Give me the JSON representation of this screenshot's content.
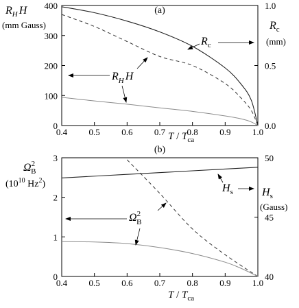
{
  "panels": [
    {
      "label": "(a)",
      "x": {
        "ticks": [
          "0.4",
          "0.5",
          "0.6",
          "0.7",
          "0.8",
          "0.9",
          "1.0"
        ]
      },
      "y_left": {
        "ticks": [
          "0",
          "100",
          "200",
          "300",
          "400"
        ],
        "unit": "(mm Gauss)"
      },
      "y_right": {
        "ticks": [
          "0.0",
          "0.5",
          "1.0"
        ],
        "unit": "(mm)"
      },
      "annotations": [
        {
          "main": "R",
          "sub": "H",
          "after": "H"
        },
        {
          "main": "R",
          "sub": "c",
          "after": ""
        }
      ]
    },
    {
      "label": "(b)",
      "x": {
        "ticks": [
          "0.4",
          "0.5",
          "0.6",
          "0.7",
          "0.8",
          "0.9",
          "1.0"
        ]
      },
      "y_left": {
        "ticks": [
          "0",
          "1",
          "2",
          "3"
        ],
        "unit_pre": "(10",
        "unit_sup": "10",
        "unit_mid": " Hz",
        "unit_sup2": "2",
        "unit_post": ")"
      },
      "y_right": {
        "ticks": [
          "40",
          "45",
          "50"
        ],
        "unit": "(Gauss)"
      },
      "annotations": [
        {
          "main": "Ω",
          "sub": "B",
          "sup": "2"
        },
        {
          "main": "H",
          "sub": "s",
          "after": ""
        }
      ]
    }
  ],
  "axis_text": {
    "xlabel_main": "T",
    "xlabel_slash": " / ",
    "xlabel_T": "T",
    "xlabel_sub": "ca",
    "a_left_main": "R",
    "a_left_sub": "H",
    "a_left_after": "H",
    "a_right_main": "R",
    "a_right_sub": "c",
    "b_left_main": "Ω",
    "b_left_sub": "B",
    "b_left_sup": "2",
    "b_right_main": "H",
    "b_right_sub": "s"
  },
  "chart_data": [
    {
      "type": "line",
      "title": "(a)",
      "xlabel": "T / Tca",
      "ylabel": "RH H (mm Gauss)",
      "ylabel_right": "Rc (mm)",
      "xlim": [
        0.4,
        1.0
      ],
      "ylim": [
        0,
        400
      ],
      "ylim_right": [
        0.0,
        1.0
      ],
      "grid": false,
      "series": [
        {
          "name": "Rc",
          "axis": "right",
          "style": "solid",
          "x": [
            0.4,
            0.5,
            0.6,
            0.7,
            0.8,
            0.9,
            0.95,
            0.98,
            1.0
          ],
          "y": [
            0.99,
            0.94,
            0.87,
            0.78,
            0.66,
            0.48,
            0.34,
            0.21,
            0.0
          ]
        },
        {
          "name": "RH H",
          "axis": "left",
          "style": "dashed",
          "x": [
            0.4,
            0.5,
            0.6,
            0.7,
            0.8,
            0.9,
            0.95,
            0.98,
            1.0
          ],
          "y": [
            370,
            330,
            280,
            230,
            200,
            140,
            90,
            50,
            0
          ]
        },
        {
          "name": "RH H",
          "axis": "left",
          "style": "solid-gray",
          "x": [
            0.4,
            0.5,
            0.6,
            0.7,
            0.8,
            0.9,
            0.95,
            0.98,
            1.0
          ],
          "y": [
            94,
            82,
            71,
            59,
            47,
            32,
            22,
            12,
            0
          ]
        }
      ]
    },
    {
      "type": "line",
      "title": "(b)",
      "xlabel": "T / Tca",
      "ylabel": "ΩB² (10^10 Hz²)",
      "ylabel_right": "Hs (Gauss)",
      "xlim": [
        0.4,
        1.0
      ],
      "ylim": [
        0,
        3
      ],
      "ylim_right": [
        40,
        50
      ],
      "grid": false,
      "series": [
        {
          "name": "Hs",
          "axis": "right",
          "style": "solid",
          "x": [
            0.4,
            0.6,
            0.8,
            1.0
          ],
          "y": [
            48.3,
            48.6,
            48.9,
            49.2
          ]
        },
        {
          "name": "ΩB²",
          "axis": "left",
          "style": "dashed",
          "x": [
            0.6,
            0.7,
            0.8,
            0.9,
            1.0
          ],
          "y": [
            2.95,
            2.1,
            1.2,
            0.55,
            0.0
          ]
        },
        {
          "name": "ΩB²",
          "axis": "left",
          "style": "solid-gray",
          "x": [
            0.4,
            0.5,
            0.6,
            0.7,
            0.8,
            0.9,
            0.95,
            1.0
          ],
          "y": [
            0.88,
            0.87,
            0.83,
            0.73,
            0.58,
            0.36,
            0.2,
            0.0
          ]
        }
      ]
    }
  ]
}
